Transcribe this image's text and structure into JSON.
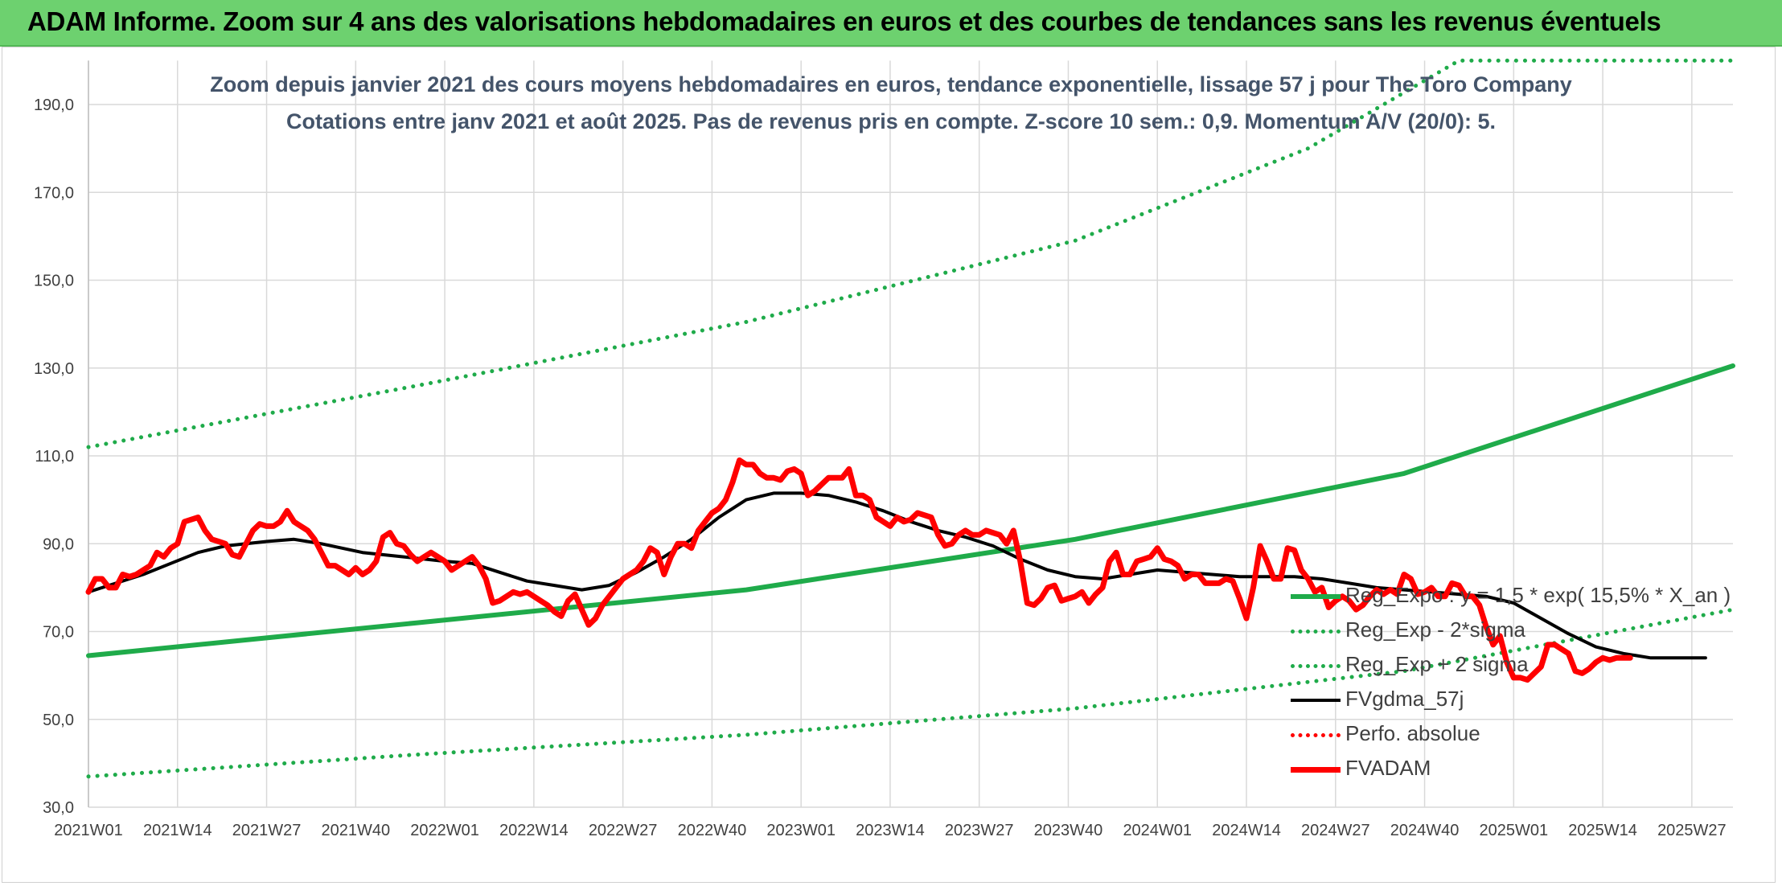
{
  "header": {
    "title": "ADAM Informe. Zoom sur 4 ans des valorisations hebdomadaires en euros et des courbes de tendances sans les revenus éventuels"
  },
  "colors": {
    "regression": "#1fab4a",
    "price": "#ff0000",
    "moving_average": "#000000",
    "grid": "#d9d9d9"
  },
  "chart_data": {
    "type": "line",
    "title_line1": "Zoom depuis janvier 2021 des cours moyens hebdomadaires en euros, tendance exponentielle, lissage 57 j pour The Toro Company",
    "title_line2": "Cotations entre janv 2021 et août 2025. Pas de revenus pris en compte. Z-score 10 sem.: 0,9. Momentum A/V (20/0): 5.",
    "xlabel": "",
    "ylabel": "",
    "ylim": [
      30,
      200
    ],
    "yticks": [
      "30,0",
      "50,0",
      "70,0",
      "90,0",
      "110,0",
      "130,0",
      "150,0",
      "170,0",
      "190,0"
    ],
    "xticks": [
      "2021W01",
      "2021W14",
      "2021W27",
      "2021W40",
      "2022W01",
      "2022W14",
      "2022W27",
      "2022W40",
      "2023W01",
      "2023W14",
      "2023W27",
      "2023W40",
      "2024W01",
      "2024W14",
      "2024W27",
      "2024W40",
      "2025W01",
      "2025W14",
      "2025W27"
    ],
    "x_range_weeks": [
      0,
      240
    ],
    "grid": true,
    "legend_position": "right-center",
    "series": [
      {
        "name": "Reg_Expo : y = 1,5 * exp( 15,5% *  X_an )",
        "style": "solid-thick",
        "color": "#1fab4a",
        "points": [
          [
            0,
            64.5
          ],
          [
            48,
            72
          ],
          [
            96,
            79.5
          ],
          [
            144,
            91
          ],
          [
            192,
            106
          ],
          [
            240,
            130.5
          ]
        ]
      },
      {
        "name": "Reg_Exp - 2*sigma",
        "style": "dotted",
        "color": "#1fab4a",
        "points": [
          [
            0,
            37
          ],
          [
            48,
            42
          ],
          [
            96,
            46.5
          ],
          [
            144,
            52.5
          ],
          [
            192,
            61
          ],
          [
            240,
            75
          ]
        ]
      },
      {
        "name": "Reg_Exp + 2 sigma",
        "style": "dotted",
        "color": "#1fab4a",
        "points": [
          [
            0,
            112
          ],
          [
            48,
            126
          ],
          [
            96,
            140.5
          ],
          [
            144,
            159
          ],
          [
            178,
            180
          ],
          [
            200,
            200
          ],
          [
            240,
            200
          ]
        ]
      },
      {
        "name": "FVgdma_57j",
        "style": "solid",
        "color": "#000000",
        "points": [
          [
            0,
            79
          ],
          [
            4,
            81
          ],
          [
            8,
            83
          ],
          [
            12,
            85.5
          ],
          [
            16,
            88
          ],
          [
            20,
            89.5
          ],
          [
            26,
            90.5
          ],
          [
            30,
            91
          ],
          [
            34,
            90
          ],
          [
            40,
            88
          ],
          [
            46,
            87
          ],
          [
            52,
            86
          ],
          [
            56,
            85.5
          ],
          [
            60,
            83.5
          ],
          [
            64,
            81.5
          ],
          [
            68,
            80.5
          ],
          [
            72,
            79.5
          ],
          [
            76,
            80.5
          ],
          [
            80,
            83.5
          ],
          [
            84,
            87
          ],
          [
            88,
            91
          ],
          [
            92,
            96
          ],
          [
            96,
            100
          ],
          [
            100,
            101.5
          ],
          [
            104,
            101.5
          ],
          [
            108,
            101
          ],
          [
            112,
            99.5
          ],
          [
            116,
            97.5
          ],
          [
            120,
            95
          ],
          [
            124,
            93
          ],
          [
            128,
            91.5
          ],
          [
            132,
            89.5
          ],
          [
            136,
            86.5
          ],
          [
            140,
            84
          ],
          [
            144,
            82.5
          ],
          [
            148,
            82
          ],
          [
            152,
            83
          ],
          [
            156,
            84
          ],
          [
            160,
            83.5
          ],
          [
            164,
            83
          ],
          [
            168,
            82.5
          ],
          [
            172,
            82.5
          ],
          [
            176,
            82.5
          ],
          [
            180,
            82
          ],
          [
            184,
            81
          ],
          [
            188,
            80
          ],
          [
            192,
            79.5
          ],
          [
            196,
            79
          ],
          [
            200,
            78.5
          ],
          [
            204,
            78
          ],
          [
            208,
            76.5
          ],
          [
            212,
            73
          ],
          [
            216,
            69.5
          ],
          [
            220,
            66.5
          ],
          [
            224,
            65
          ],
          [
            228,
            64
          ],
          [
            232,
            64
          ],
          [
            236,
            64
          ]
        ]
      },
      {
        "name": "Perfo. absolue",
        "style": "dotted",
        "color": "#ff0000",
        "points": []
      },
      {
        "name": "FVADAM",
        "style": "solid-thick",
        "color": "#ff0000",
        "points": [
          [
            0,
            79
          ],
          [
            1,
            82
          ],
          [
            2,
            82
          ],
          [
            3,
            80
          ],
          [
            4,
            80
          ],
          [
            5,
            83
          ],
          [
            6,
            82.5
          ],
          [
            7,
            83
          ],
          [
            8,
            84
          ],
          [
            9,
            85
          ],
          [
            10,
            88
          ],
          [
            11,
            87
          ],
          [
            12,
            89
          ],
          [
            13,
            90
          ],
          [
            14,
            95
          ],
          [
            15,
            95.5
          ],
          [
            16,
            96
          ],
          [
            17,
            93
          ],
          [
            18,
            91
          ],
          [
            19,
            90.5
          ],
          [
            20,
            90
          ],
          [
            21,
            87.5
          ],
          [
            22,
            87
          ],
          [
            23,
            90
          ],
          [
            24,
            93
          ],
          [
            25,
            94.5
          ],
          [
            26,
            94
          ],
          [
            27,
            94
          ],
          [
            28,
            95
          ],
          [
            29,
            97.5
          ],
          [
            30,
            95
          ],
          [
            31,
            94
          ],
          [
            32,
            93
          ],
          [
            33,
            91
          ],
          [
            34,
            88
          ],
          [
            35,
            85
          ],
          [
            36,
            85
          ],
          [
            37,
            84
          ],
          [
            38,
            83
          ],
          [
            39,
            84.5
          ],
          [
            40,
            83
          ],
          [
            41,
            84
          ],
          [
            42,
            86
          ],
          [
            43,
            91.5
          ],
          [
            44,
            92.5
          ],
          [
            45,
            90
          ],
          [
            46,
            89.5
          ],
          [
            47,
            87.5
          ],
          [
            48,
            86
          ],
          [
            49,
            87
          ],
          [
            50,
            88
          ],
          [
            51,
            87
          ],
          [
            52,
            86
          ],
          [
            53,
            84
          ],
          [
            54,
            85
          ],
          [
            55,
            86
          ],
          [
            56,
            87
          ],
          [
            57,
            85
          ],
          [
            58,
            82
          ],
          [
            59,
            76.5
          ],
          [
            60,
            77
          ],
          [
            61,
            78
          ],
          [
            62,
            79
          ],
          [
            63,
            78.5
          ],
          [
            64,
            79
          ],
          [
            65,
            78
          ],
          [
            66,
            77
          ],
          [
            67,
            76
          ],
          [
            68,
            74.5
          ],
          [
            69,
            73.5
          ],
          [
            70,
            77
          ],
          [
            71,
            78.5
          ],
          [
            72,
            75
          ],
          [
            73,
            71.5
          ],
          [
            74,
            73
          ],
          [
            75,
            76
          ],
          [
            76,
            78
          ],
          [
            77,
            80
          ],
          [
            78,
            82
          ],
          [
            79,
            83
          ],
          [
            80,
            84
          ],
          [
            81,
            86
          ],
          [
            82,
            89
          ],
          [
            83,
            88
          ],
          [
            84,
            83
          ],
          [
            85,
            87
          ],
          [
            86,
            90
          ],
          [
            87,
            90
          ],
          [
            88,
            89
          ],
          [
            89,
            93
          ],
          [
            90,
            95
          ],
          [
            91,
            97
          ],
          [
            92,
            98
          ],
          [
            93,
            100
          ],
          [
            94,
            104
          ],
          [
            95,
            109
          ],
          [
            96,
            108
          ],
          [
            97,
            108
          ],
          [
            98,
            106
          ],
          [
            99,
            105
          ],
          [
            100,
            105
          ],
          [
            101,
            104.5
          ],
          [
            102,
            106.5
          ],
          [
            103,
            107
          ],
          [
            104,
            106
          ],
          [
            105,
            101
          ],
          [
            106,
            102
          ],
          [
            107,
            103.5
          ],
          [
            108,
            105
          ],
          [
            109,
            105
          ],
          [
            110,
            105
          ],
          [
            111,
            107
          ],
          [
            112,
            101
          ],
          [
            113,
            101
          ],
          [
            114,
            100
          ],
          [
            115,
            96
          ],
          [
            116,
            95
          ],
          [
            117,
            94
          ],
          [
            118,
            96
          ],
          [
            119,
            95
          ],
          [
            120,
            95.5
          ],
          [
            121,
            97
          ],
          [
            122,
            96.5
          ],
          [
            123,
            96
          ],
          [
            124,
            92
          ],
          [
            125,
            89.5
          ],
          [
            126,
            90
          ],
          [
            127,
            92
          ],
          [
            128,
            93
          ],
          [
            129,
            92
          ],
          [
            130,
            92
          ],
          [
            131,
            93
          ],
          [
            132,
            92.5
          ],
          [
            133,
            92
          ],
          [
            134,
            90
          ],
          [
            135,
            93
          ],
          [
            136,
            86
          ],
          [
            137,
            76.5
          ],
          [
            138,
            76
          ],
          [
            139,
            77.5
          ],
          [
            140,
            80
          ],
          [
            141,
            80.5
          ],
          [
            142,
            77
          ],
          [
            143,
            77.5
          ],
          [
            144,
            78
          ],
          [
            145,
            79
          ],
          [
            146,
            76.5
          ],
          [
            147,
            78.5
          ],
          [
            148,
            80
          ],
          [
            149,
            86
          ],
          [
            150,
            88
          ],
          [
            151,
            83
          ],
          [
            152,
            83
          ],
          [
            153,
            86
          ],
          [
            154,
            86.5
          ],
          [
            155,
            87
          ],
          [
            156,
            89
          ],
          [
            157,
            86.5
          ],
          [
            158,
            86
          ],
          [
            159,
            85
          ],
          [
            160,
            82
          ],
          [
            161,
            83
          ],
          [
            162,
            83
          ],
          [
            163,
            81
          ],
          [
            164,
            81
          ],
          [
            165,
            81
          ],
          [
            166,
            82
          ],
          [
            167,
            81.5
          ],
          [
            168,
            77.5
          ],
          [
            169,
            73
          ],
          [
            170,
            80
          ],
          [
            171,
            89.5
          ],
          [
            172,
            86
          ],
          [
            173,
            82
          ],
          [
            174,
            82
          ],
          [
            175,
            89
          ],
          [
            176,
            88.5
          ],
          [
            177,
            84
          ],
          [
            178,
            82
          ],
          [
            179,
            79
          ],
          [
            180,
            80
          ],
          [
            181,
            75.5
          ],
          [
            182,
            77
          ],
          [
            183,
            78
          ],
          [
            184,
            77
          ],
          [
            185,
            75
          ],
          [
            186,
            76
          ],
          [
            187,
            78
          ],
          [
            188,
            79.5
          ],
          [
            189,
            78.5
          ],
          [
            190,
            79.5
          ],
          [
            191,
            78.5
          ],
          [
            192,
            83
          ],
          [
            193,
            82
          ],
          [
            194,
            78.5
          ],
          [
            195,
            79
          ],
          [
            196,
            80
          ],
          [
            197,
            78
          ],
          [
            198,
            78
          ],
          [
            199,
            81
          ],
          [
            200,
            80.5
          ],
          [
            201,
            78
          ],
          [
            202,
            78
          ],
          [
            203,
            76
          ],
          [
            204,
            71
          ],
          [
            205,
            67
          ],
          [
            206,
            69
          ],
          [
            207,
            63
          ],
          [
            208,
            59.5
          ],
          [
            209,
            59.5
          ],
          [
            210,
            59
          ],
          [
            211,
            60.5
          ],
          [
            212,
            62
          ],
          [
            213,
            67
          ],
          [
            214,
            67
          ],
          [
            215,
            66
          ],
          [
            216,
            65
          ],
          [
            217,
            61
          ],
          [
            218,
            60.5
          ],
          [
            219,
            61.5
          ],
          [
            220,
            63
          ],
          [
            221,
            64
          ],
          [
            222,
            63.5
          ],
          [
            223,
            64
          ],
          [
            224,
            64
          ],
          [
            225,
            64
          ]
        ]
      }
    ]
  }
}
